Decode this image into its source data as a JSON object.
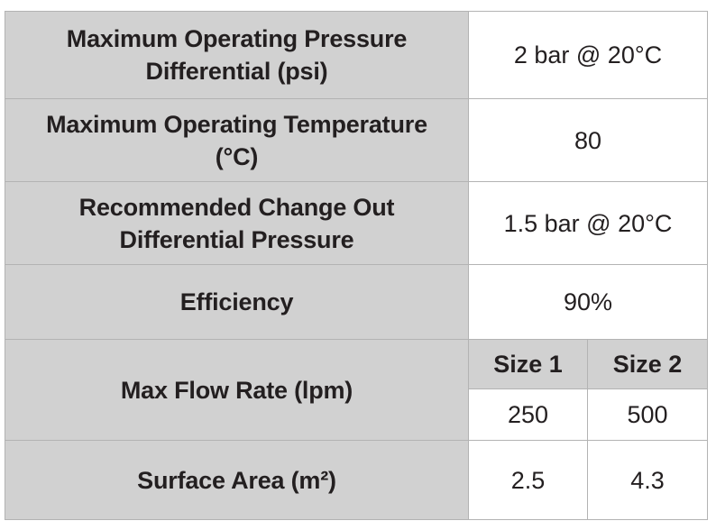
{
  "rows": [
    {
      "label_lines": [
        "Maximum Operating Pressure",
        "Differential (psi)"
      ],
      "value": "2 bar @ 20°C"
    },
    {
      "label_lines": [
        "Maximum Operating Temperature",
        "(°C)"
      ],
      "value": "80"
    },
    {
      "label_lines": [
        "Recommended Change Out",
        "Differential Pressure"
      ],
      "value": "1.5 bar @ 20°C"
    },
    {
      "label_lines": [
        "Efficiency"
      ],
      "value": "90%"
    }
  ],
  "flow_rate": {
    "label": "Max Flow Rate (lpm)",
    "size_headers": [
      "Size 1",
      "Size 2"
    ],
    "values": [
      "250",
      "500"
    ]
  },
  "surface_area": {
    "label": "Surface Area (m²)",
    "values": [
      "2.5",
      "4.3"
    ]
  },
  "colors": {
    "label_background": "#d1d1d1",
    "value_background": "#ffffff",
    "border": "#b3b3b3",
    "text": "#231f20"
  }
}
